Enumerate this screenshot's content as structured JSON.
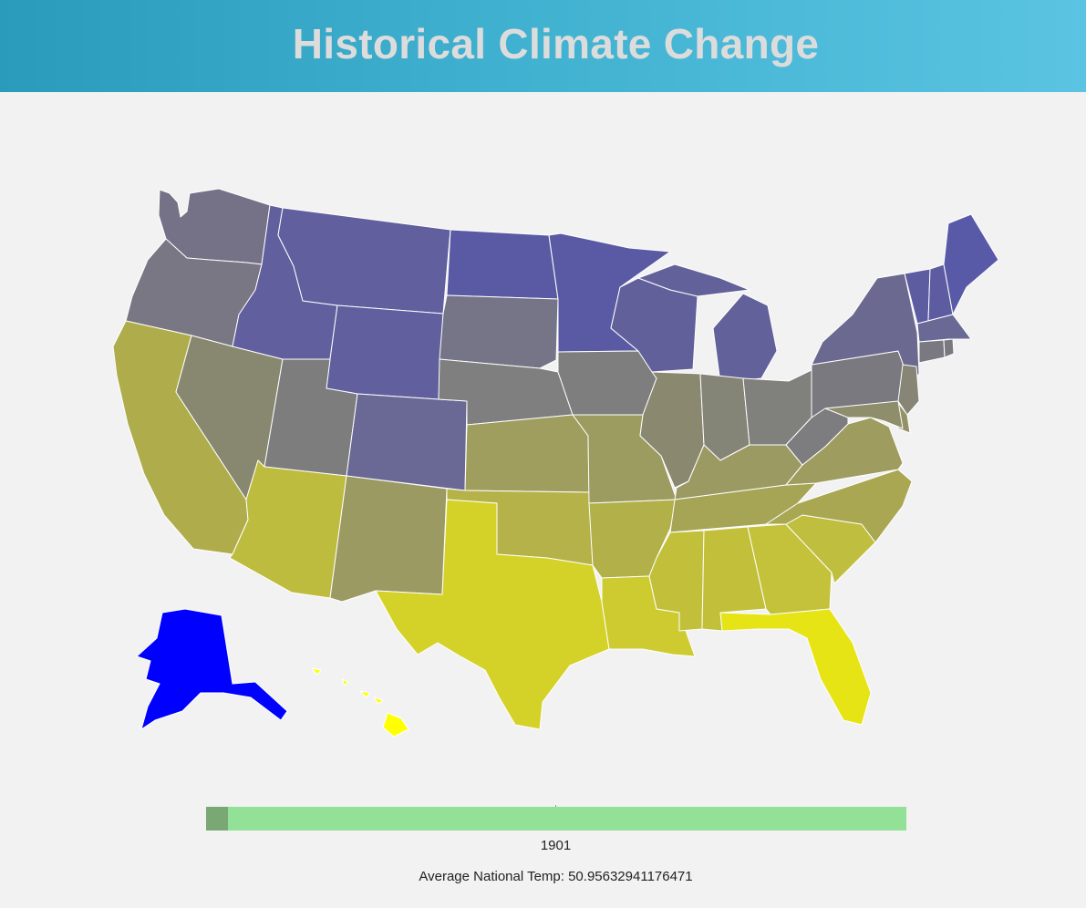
{
  "header": {
    "title": "Historical Climate Change"
  },
  "timeline": {
    "year": "1901",
    "progress_fraction": 0.031
  },
  "stats": {
    "avg_label": "Average National Temp: 50.95632941176471"
  },
  "states": [
    {
      "name": "Washington",
      "color": "#757287"
    },
    {
      "name": "Oregon",
      "color": "#787783"
    },
    {
      "name": "California",
      "color": "#afad4b"
    },
    {
      "name": "Nevada",
      "color": "#888871"
    },
    {
      "name": "Idaho",
      "color": "#615f9d"
    },
    {
      "name": "Montana",
      "color": "#615f9d"
    },
    {
      "name": "Wyoming",
      "color": "#615f9d"
    },
    {
      "name": "Utah",
      "color": "#7d7d7d"
    },
    {
      "name": "Arizona",
      "color": "#bdbc3f"
    },
    {
      "name": "Colorado",
      "color": "#6a6894"
    },
    {
      "name": "New Mexico",
      "color": "#9b9a62"
    },
    {
      "name": "North Dakota",
      "color": "#5a5aa4"
    },
    {
      "name": "South Dakota",
      "color": "#767587"
    },
    {
      "name": "Nebraska",
      "color": "#807f7f"
    },
    {
      "name": "Kansas",
      "color": "#9f9e5e"
    },
    {
      "name": "Oklahoma",
      "color": "#b4b248"
    },
    {
      "name": "Texas",
      "color": "#d4d228"
    },
    {
      "name": "Minnesota",
      "color": "#5a5aa4"
    },
    {
      "name": "Iowa",
      "color": "#7e7e7e"
    },
    {
      "name": "Missouri",
      "color": "#9c9b60"
    },
    {
      "name": "Arkansas",
      "color": "#b2b048"
    },
    {
      "name": "Louisiana",
      "color": "#cdcb2f"
    },
    {
      "name": "Wisconsin",
      "color": "#62609b"
    },
    {
      "name": "Illinois",
      "color": "#8a8970"
    },
    {
      "name": "Michigan",
      "color": "#63619a"
    },
    {
      "name": "Indiana",
      "color": "#848477"
    },
    {
      "name": "Ohio",
      "color": "#80807c"
    },
    {
      "name": "Kentucky",
      "color": "#9b9a62"
    },
    {
      "name": "Tennessee",
      "color": "#a6a556"
    },
    {
      "name": "Mississippi",
      "color": "#c2c03a"
    },
    {
      "name": "Alabama",
      "color": "#c2c03a"
    },
    {
      "name": "Georgia",
      "color": "#c4c23a"
    },
    {
      "name": "Florida",
      "color": "#e6e414"
    },
    {
      "name": "South Carolina",
      "color": "#c0be3e"
    },
    {
      "name": "North Carolina",
      "color": "#a9a752"
    },
    {
      "name": "Virginia",
      "color": "#9e9d5f"
    },
    {
      "name": "West Virginia",
      "color": "#7d7d80"
    },
    {
      "name": "Pennsylvania",
      "color": "#7a7980"
    },
    {
      "name": "New York",
      "color": "#6b698f"
    },
    {
      "name": "Maine",
      "color": "#5859a7"
    },
    {
      "name": "New Hampshire",
      "color": "#5d5ca1"
    },
    {
      "name": "Vermont",
      "color": "#5d5ca1"
    },
    {
      "name": "Massachusetts",
      "color": "#6a6894"
    },
    {
      "name": "Connecticut",
      "color": "#7a7982"
    },
    {
      "name": "Rhode Island",
      "color": "#7a7982"
    },
    {
      "name": "New Jersey",
      "color": "#878676"
    },
    {
      "name": "Delaware",
      "color": "#939267"
    },
    {
      "name": "Maryland",
      "color": "#8e8d6c"
    },
    {
      "name": "Alaska",
      "color": "#0000ff"
    },
    {
      "name": "Hawaii",
      "color": "#ffff00"
    }
  ]
}
